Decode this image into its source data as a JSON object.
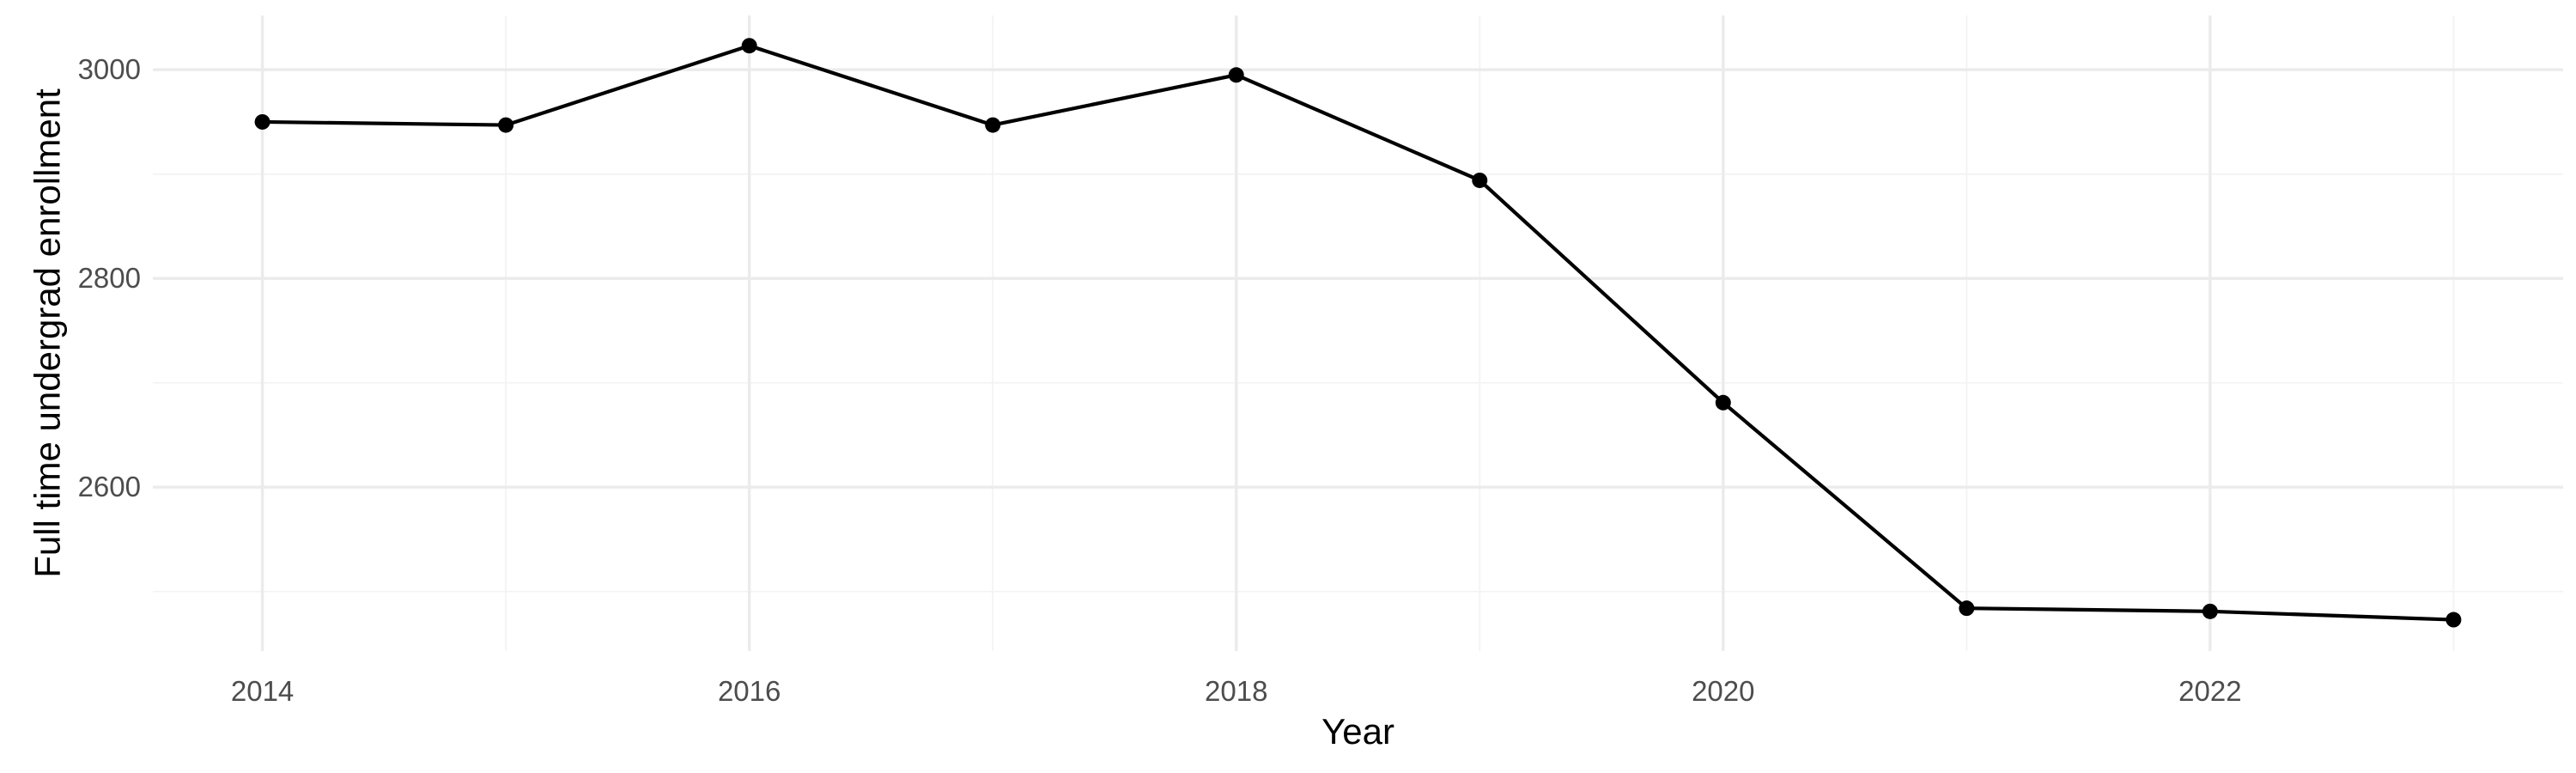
{
  "chart_data": {
    "type": "line",
    "title": "",
    "xlabel": "Year",
    "ylabel": "Full time undergrad enrollment",
    "x": [
      2014,
      2015,
      2016,
      2017,
      2018,
      2019,
      2020,
      2021,
      2022,
      2023
    ],
    "series": [
      {
        "values": [
          2950,
          2947,
          3023,
          2947,
          2995,
          2894,
          2681,
          2484,
          2481,
          2473
        ]
      }
    ],
    "xlim": [
      2013.55,
      2023.45
    ],
    "ylim": [
      2443,
      3052
    ],
    "x_ticks": [
      2014,
      2016,
      2018,
      2020,
      2022
    ],
    "x_tick_labels": [
      "2014",
      "2016",
      "2018",
      "2020",
      "2022"
    ],
    "y_ticks": [
      2600,
      2800,
      3000
    ],
    "y_tick_labels": [
      "2600",
      "2800",
      "3000"
    ],
    "grid": true,
    "legend": "none",
    "line_color": "#000000",
    "grid_color": "#ebebeb",
    "background": "#ffffff"
  }
}
